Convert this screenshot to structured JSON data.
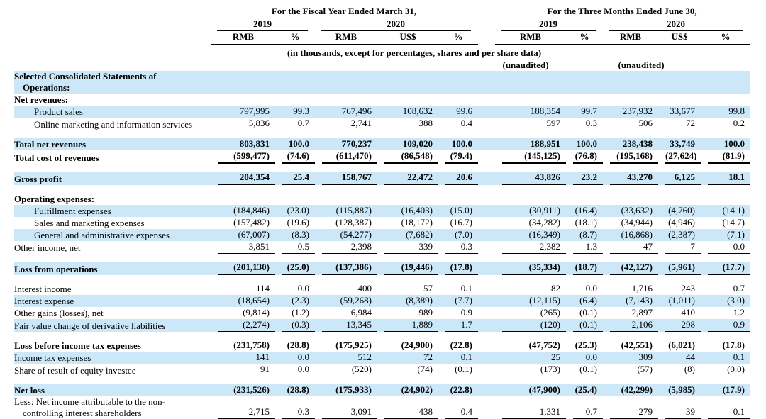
{
  "colors": {
    "row_highlight": "#cbe7f8",
    "rule": "#000000"
  },
  "table": {
    "period_groups": [
      {
        "label": "For the Fiscal Year Ended March 31,",
        "years": [
          {
            "label": "2019",
            "columns": [
              "RMB",
              "%"
            ]
          },
          {
            "label": "2020",
            "columns": [
              "RMB",
              "US$",
              "%"
            ]
          }
        ]
      },
      {
        "label": "For the Three Months Ended June 30,",
        "years": [
          {
            "label": "2019",
            "columns": [
              "RMB",
              "%"
            ],
            "note": "(unaudited)"
          },
          {
            "label": "2020",
            "columns": [
              "RMB",
              "US$",
              "%"
            ],
            "note": "(unaudited)"
          }
        ]
      }
    ],
    "units_note": "(in thousands, except for percentages, shares and per share data)",
    "rows": [
      {
        "label": "Selected Consolidated Statements of",
        "label2": "Operations:",
        "bold": true,
        "highlight": true,
        "values": []
      },
      {
        "label": "Net revenues:",
        "bold": true,
        "values": []
      },
      {
        "label": "Product sales",
        "indent": 1,
        "highlight": true,
        "values": [
          "797,995",
          "99.3",
          "767,496",
          "108,632",
          "99.6",
          "188,354",
          "99.7",
          "237,932",
          "33,677",
          "99.8"
        ]
      },
      {
        "label": "Online marketing and information services",
        "indent": 1,
        "underline": true,
        "values": [
          "5,836",
          "0.7",
          "2,741",
          "388",
          "0.4",
          "597",
          "0.3",
          "506",
          "72",
          "0.2"
        ]
      },
      {
        "spacer": true
      },
      {
        "label": "Total net revenues",
        "bold": true,
        "highlight": true,
        "values": [
          "803,831",
          "100.0",
          "770,237",
          "109,020",
          "100.0",
          "188,951",
          "100.0",
          "238,438",
          "33,749",
          "100.0"
        ]
      },
      {
        "label": "Total cost of revenues",
        "bold": true,
        "underline": true,
        "values": [
          "(599,477)",
          "(74.6)",
          "(611,470)",
          "(86,548)",
          "(79.4)",
          "(145,125)",
          "(76.8)",
          "(195,168)",
          "(27,624)",
          "(81.9)"
        ]
      },
      {
        "spacer": true
      },
      {
        "label": "Gross profit",
        "bold": true,
        "highlight": true,
        "underline": true,
        "values": [
          "204,354",
          "25.4",
          "158,767",
          "22,472",
          "20.6",
          "43,826",
          "23.2",
          "43,270",
          "6,125",
          "18.1"
        ]
      },
      {
        "spacer": true
      },
      {
        "label": "Operating expenses:",
        "bold": true,
        "values": []
      },
      {
        "label": "Fulfillment expenses",
        "indent": 1,
        "highlight": true,
        "values": [
          "(184,846)",
          "(23.0)",
          "(115,887)",
          "(16,403)",
          "(15.0)",
          "(30,911)",
          "(16.4)",
          "(33,632)",
          "(4,760)",
          "(14.1)"
        ]
      },
      {
        "label": "Sales and marketing expenses",
        "indent": 1,
        "values": [
          "(157,482)",
          "(19.6)",
          "(128,387)",
          "(18,172)",
          "(16.7)",
          "(34,282)",
          "(18.1)",
          "(34,944)",
          "(4,946)",
          "(14.7)"
        ]
      },
      {
        "label": "General and administrative expenses",
        "indent": 1,
        "highlight": true,
        "values": [
          "(67,007)",
          "(8.3)",
          "(54,277)",
          "(7,682)",
          "(7.0)",
          "(16,349)",
          "(8.7)",
          "(16,868)",
          "(2,387)",
          "(7.1)"
        ]
      },
      {
        "label": "Other income, net",
        "underline": true,
        "values": [
          "3,851",
          "0.5",
          "2,398",
          "339",
          "0.3",
          "2,382",
          "1.3",
          "47",
          "7",
          "0.0"
        ]
      },
      {
        "spacer": true
      },
      {
        "label": "Loss from operations",
        "bold": true,
        "highlight": true,
        "underline": true,
        "values": [
          "(201,130)",
          "(25.0)",
          "(137,386)",
          "(19,446)",
          "(17.8)",
          "(35,334)",
          "(18.7)",
          "(42,127)",
          "(5,961)",
          "(17.7)"
        ]
      },
      {
        "spacer": true
      },
      {
        "label": "Interest income",
        "values": [
          "114",
          "0.0",
          "400",
          "57",
          "0.1",
          "82",
          "0.0",
          "1,716",
          "243",
          "0.7"
        ]
      },
      {
        "label": "Interest expense",
        "highlight": true,
        "values": [
          "(18,654)",
          "(2.3)",
          "(59,268)",
          "(8,389)",
          "(7.7)",
          "(12,115)",
          "(6.4)",
          "(7,143)",
          "(1,011)",
          "(3.0)"
        ]
      },
      {
        "label": "Other gains (losses), net",
        "values": [
          "(9,814)",
          "(1.2)",
          "6,984",
          "989",
          "0.9",
          "(265)",
          "(0.1)",
          "2,897",
          "410",
          "1.2"
        ]
      },
      {
        "label": "Fair value change of derivative liabilities",
        "highlight": true,
        "underline": true,
        "values": [
          "(2,274)",
          "(0.3)",
          "13,345",
          "1,889",
          "1.7",
          "(120)",
          "(0.1)",
          "2,106",
          "298",
          "0.9"
        ]
      },
      {
        "spacer": true
      },
      {
        "label": "Loss before income tax expenses",
        "bold": true,
        "values": [
          "(231,758)",
          "(28.8)",
          "(175,925)",
          "(24,900)",
          "(22.8)",
          "(47,752)",
          "(25.3)",
          "(42,551)",
          "(6,021)",
          "(17.8)"
        ]
      },
      {
        "label": "Income tax expenses",
        "highlight": true,
        "values": [
          "141",
          "0.0",
          "512",
          "72",
          "0.1",
          "25",
          "0.0",
          "309",
          "44",
          "0.1"
        ]
      },
      {
        "label": "Share of result of equity investee",
        "underline": true,
        "values": [
          "91",
          "0.0",
          "(520)",
          "(74)",
          "(0.1)",
          "(173)",
          "(0.1)",
          "(57)",
          "(8)",
          "(0.0)"
        ]
      },
      {
        "spacer": true
      },
      {
        "label": "Net loss",
        "bold": true,
        "highlight": true,
        "values": [
          "(231,526)",
          "(28.8)",
          "(175,933)",
          "(24,902)",
          "(22.8)",
          "(47,900)",
          "(25.4)",
          "(42,299)",
          "(5,985)",
          "(17.9)"
        ]
      },
      {
        "label": "Less: Net income attributable to the non-",
        "label2": "controlling interest shareholders",
        "underline": true,
        "values": [
          "2,715",
          "0.3",
          "3,091",
          "438",
          "0.4",
          "1,331",
          "0.7",
          "279",
          "39",
          "0.1"
        ]
      }
    ]
  }
}
